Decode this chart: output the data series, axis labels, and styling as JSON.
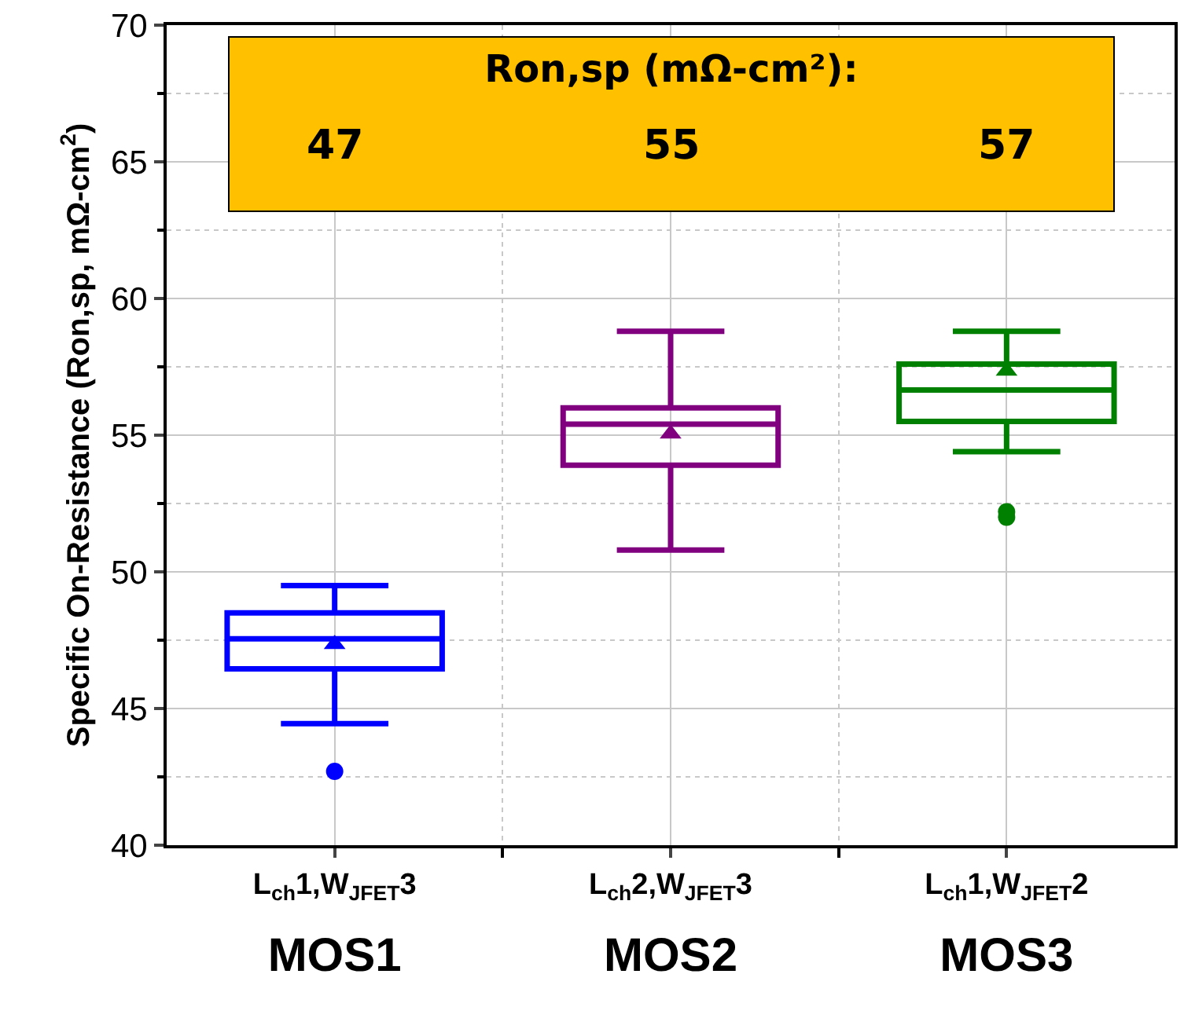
{
  "chart_data": {
    "type": "box",
    "ylabel": "Specific On-Resistance (Ron,sp, mΩ-cm$^{2}$)",
    "categories": [
      "L$_{ch}$1,W$_{JFET}$3\nMOS1",
      "L$_{ch}$2,W$_{JFET}$3\nMOS2",
      "L$_{ch}$1,W$_{JFET}$2\nMOS3"
    ],
    "colors": [
      "#0000ff",
      "#800080",
      "#008000"
    ],
    "boxes": [
      {
        "low": 44.45,
        "q1": 46.45,
        "median": 47.55,
        "q3": 48.5,
        "high": 49.5,
        "mean": 47.35,
        "outliers": [
          42.7
        ]
      },
      {
        "low": 50.8,
        "q1": 53.9,
        "median": 55.4,
        "q3": 56.0,
        "high": 58.8,
        "mean": 55.05
      },
      {
        "low": 54.4,
        "q1": 55.5,
        "median": 56.65,
        "q3": 57.6,
        "high": 58.8,
        "mean": 57.35,
        "outliers": [
          52.2,
          52.0
        ]
      }
    ],
    "annotations": [
      "Ron,sp (mΩ-cm²):",
      "47",
      "55",
      "57"
    ],
    "ylim": [
      40,
      70
    ],
    "yticks": [
      40,
      45,
      50,
      55,
      60,
      65,
      70
    ],
    "grid": true,
    "marker": "circle"
  }
}
